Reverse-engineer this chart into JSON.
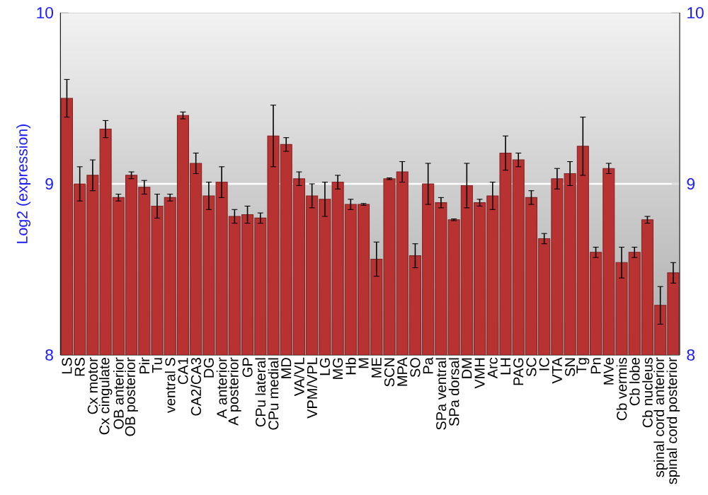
{
  "chart_data": {
    "type": "bar",
    "ylabel": "Log2 (expression)",
    "categories": [
      "LS",
      "RS",
      "Cx motor",
      "Cx cingulate",
      "OB anterior",
      "OB posterior",
      "Pir",
      "Tu",
      "ventral S",
      "CA1",
      "CA2/CA3",
      "DG",
      "A anterior",
      "A posterior",
      "GP",
      "CPu lateral",
      "CPu medial",
      "MD",
      "VA/VL",
      "VPM/VPL",
      "LG",
      "MG",
      "Hb",
      "M",
      "ME",
      "SCN",
      "MPA",
      "SO",
      "Pa",
      "SPa ventral",
      "SPa dorsal",
      "DM",
      "VMH",
      "Arc",
      "LH",
      "PAG",
      "SC",
      "IC",
      "VTA",
      "SN",
      "Tg",
      "Pn",
      "MVe",
      "Cb vermis",
      "Cb lobe",
      "Cb nucleus",
      "spinal cord anterior",
      "spinal cord posterior"
    ],
    "values": [
      9.5,
      9.0,
      9.05,
      9.32,
      8.92,
      9.05,
      8.98,
      8.87,
      8.92,
      9.4,
      9.12,
      8.93,
      9.01,
      8.81,
      8.82,
      8.8,
      9.28,
      9.23,
      9.03,
      8.93,
      8.91,
      9.01,
      8.88,
      8.88,
      8.56,
      9.03,
      9.07,
      8.58,
      9.0,
      8.89,
      8.79,
      8.99,
      8.89,
      8.93,
      9.18,
      9.14,
      8.92,
      8.68,
      9.03,
      9.06,
      9.22,
      8.6,
      9.09,
      8.54,
      8.6,
      8.79,
      8.29,
      8.48
    ],
    "errors": [
      0.11,
      0.1,
      0.09,
      0.05,
      0.02,
      0.02,
      0.04,
      0.07,
      0.02,
      0.02,
      0.06,
      0.08,
      0.09,
      0.04,
      0.05,
      0.03,
      0.18,
      0.04,
      0.04,
      0.07,
      0.1,
      0.04,
      0.03,
      0.005,
      0.1,
      0.005,
      0.06,
      0.07,
      0.12,
      0.03,
      0.005,
      0.13,
      0.02,
      0.08,
      0.1,
      0.04,
      0.04,
      0.03,
      0.06,
      0.07,
      0.17,
      0.03,
      0.03,
      0.09,
      0.03,
      0.02,
      0.11,
      0.06
    ],
    "color": "#b83232",
    "ylim": [
      8,
      10
    ],
    "yticks": [
      8,
      9,
      10
    ],
    "y2lim": [
      8,
      10
    ],
    "y2ticks": [
      8,
      9,
      10
    ],
    "grid": "y"
  }
}
